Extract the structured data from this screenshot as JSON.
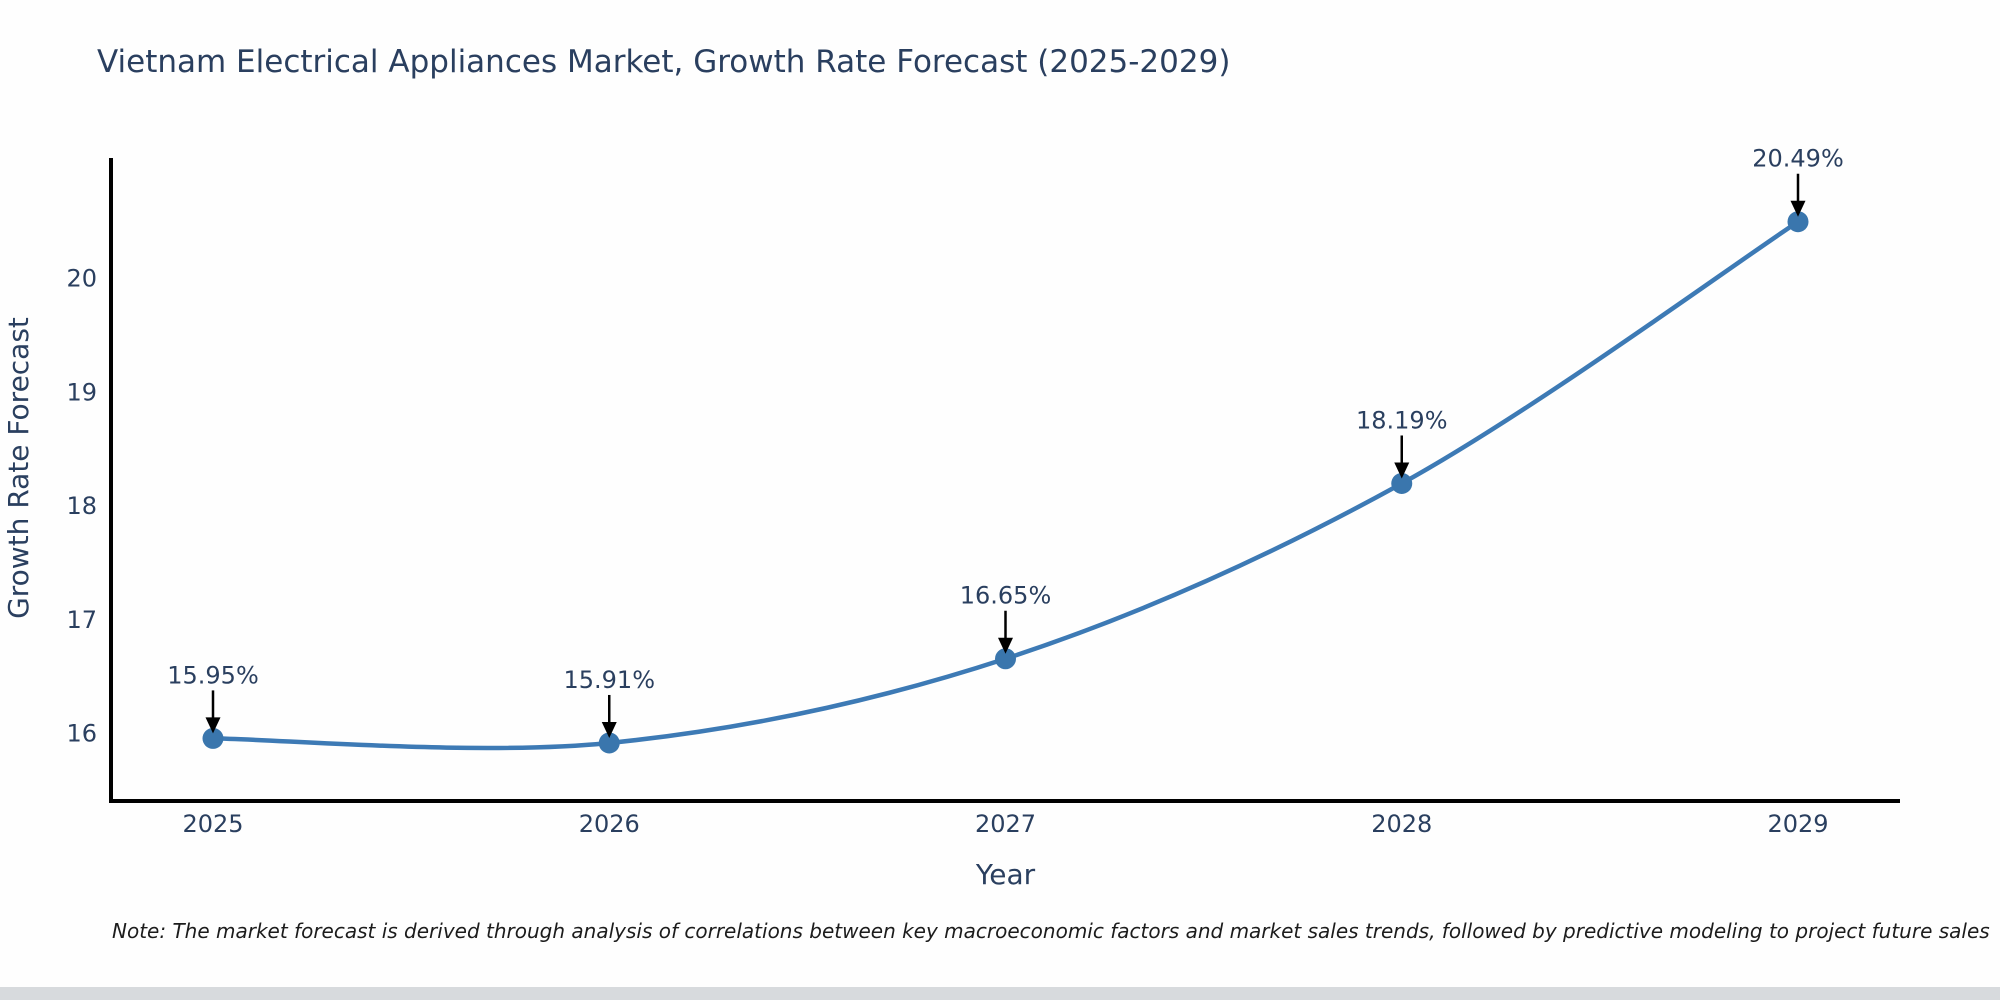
{
  "chart_data": {
    "type": "line",
    "title": "Vietnam Electrical Appliances Market, Growth Rate Forecast (2025-2029)",
    "xlabel": "Year",
    "ylabel": "Growth Rate Forecast",
    "categories": [
      "2025",
      "2026",
      "2027",
      "2028",
      "2029"
    ],
    "series": [
      {
        "name": "Growth Rate Forecast",
        "values": [
          15.95,
          15.91,
          16.65,
          18.19,
          20.49
        ],
        "point_labels": [
          "15.95%",
          "15.91%",
          "16.65%",
          "18.19%",
          "20.49%"
        ],
        "line_color": "#3d7ab5",
        "marker_color": "#3a76ad"
      }
    ],
    "yticks": [
      16,
      17,
      18,
      19,
      20
    ],
    "ylim": [
      15.4,
      21.05
    ],
    "grid": false,
    "legend": "none",
    "line_shape": "spline",
    "axis_color": "#000000",
    "text_color": "#2a3f5f",
    "annotation_arrow_color": "#000000"
  },
  "note": {
    "text": "Note: The market forecast is derived through analysis of correlations between key macroeconomic factors and market sales trends, followed by predictive modeling to project future sales"
  }
}
